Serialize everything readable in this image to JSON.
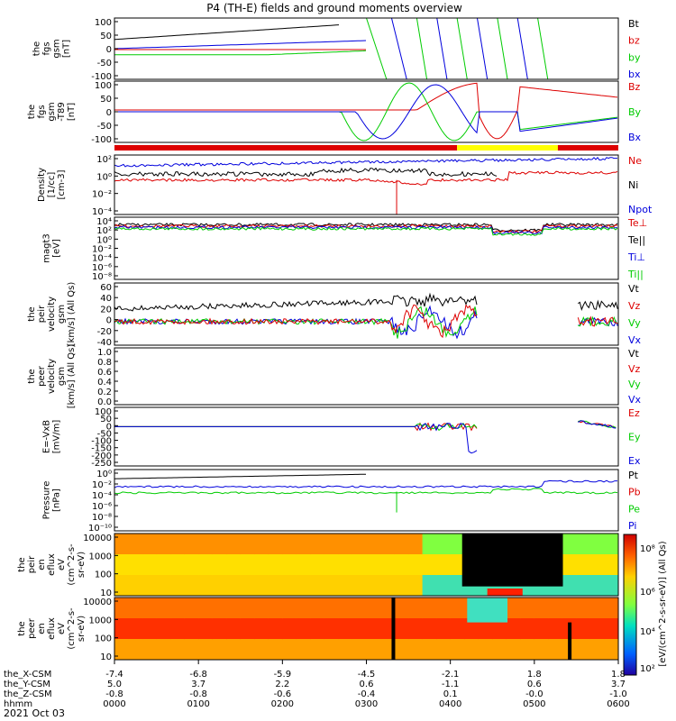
{
  "title": "P4 (TH-E) fields and ground moments overview",
  "colors": {
    "black": "#000000",
    "red": "#dd0000",
    "green": "#00cc00",
    "blue": "#0000dd",
    "yellow": "#ffff00",
    "cyan": "#00d0d0"
  },
  "chart_data": {
    "type": "line",
    "x_time_ticks": [
      "0000",
      "0100",
      "0200",
      "0300",
      "0400",
      "0500",
      "0600"
    ],
    "ephemeris": [
      {
        "label": "the_X-CSM",
        "values": [
          "-7.4",
          "-6.8",
          "-5.9",
          "-4.5",
          "-2.1",
          "1.8",
          "1.8"
        ]
      },
      {
        "label": "the_Y-CSM",
        "values": [
          "5.0",
          "3.7",
          "2.2",
          "0.6",
          "-1.1",
          "0.6",
          "3.7"
        ]
      },
      {
        "label": "the_Z-CSM",
        "values": [
          "-0.8",
          "-0.8",
          "-0.6",
          "-0.4",
          "0.1",
          "-0.0",
          "-1.0"
        ]
      },
      {
        "label": "hhmm",
        "values": []
      }
    ],
    "date_label": "2021 Oct 03",
    "panels": [
      {
        "id": "fgs-gsm",
        "ylabel": [
          "the",
          "fgs",
          "gsm",
          "[nT]"
        ],
        "yticks": [
          "100",
          "50",
          "0",
          "-50",
          "-100"
        ],
        "legend": [
          {
            "text": "Bt",
            "color": "black"
          },
          {
            "text": "bz",
            "color": "red"
          },
          {
            "text": "by",
            "color": "green"
          },
          {
            "text": "bx",
            "color": "blue"
          }
        ]
      },
      {
        "id": "fgs-gsm-dt",
        "ylabel": [
          "the",
          "fgs",
          "gsm",
          "-T89",
          "[nT]"
        ],
        "yticks": [
          "100",
          "50",
          "0",
          "-50",
          "-100"
        ],
        "legend": [
          {
            "text": "Bz",
            "color": "red"
          },
          {
            "text": "By",
            "color": "green"
          },
          {
            "text": "Bx",
            "color": "blue"
          }
        ]
      },
      {
        "id": "density",
        "ylabel": [
          "Density",
          "[1/cc]",
          "[cm-3]"
        ],
        "yticks": [
          "10²",
          "10⁰",
          "10⁻²",
          "10⁻⁴"
        ],
        "legend": [
          {
            "text": "Ne",
            "color": "red"
          },
          {
            "text": "Ni",
            "color": "black"
          },
          {
            "text": "Npot",
            "color": "blue"
          }
        ]
      },
      {
        "id": "temperature",
        "ylabel": [
          "magt3",
          "[eV]"
        ],
        "yticks": [
          "10⁴",
          "10²",
          "10⁰",
          "10⁻²",
          "10⁻⁴",
          "10⁻⁶",
          "10⁻⁸"
        ],
        "legend": [
          {
            "text": "Te⊥",
            "color": "red"
          },
          {
            "text": "Te||",
            "color": "black"
          },
          {
            "text": "Ti⊥",
            "color": "blue"
          },
          {
            "text": "Ti||",
            "color": "green"
          }
        ]
      },
      {
        "id": "peir-velocity",
        "ylabel": [
          "the",
          "peir",
          "velocity",
          "gsm",
          "[km/s] (All Qs)"
        ],
        "yticks": [
          "60",
          "40",
          "20",
          "0",
          "-20",
          "-40"
        ],
        "legend": [
          {
            "text": "Vt",
            "color": "black"
          },
          {
            "text": "Vz",
            "color": "red"
          },
          {
            "text": "Vy",
            "color": "green"
          },
          {
            "text": "Vx",
            "color": "blue"
          }
        ]
      },
      {
        "id": "peer-velocity",
        "ylabel": [
          "the",
          "peer",
          "velocity",
          "gsm",
          "[km/s] (All Qs)"
        ],
        "yticks": [
          "1.0",
          "0.8",
          "0.6",
          "0.4",
          "0.2",
          "0.0"
        ],
        "legend": [
          {
            "text": "Vt",
            "color": "black"
          },
          {
            "text": "Vz",
            "color": "red"
          },
          {
            "text": "Vy",
            "color": "green"
          },
          {
            "text": "Vx",
            "color": "blue"
          }
        ]
      },
      {
        "id": "efield",
        "ylabel": [
          "E=-VxB",
          "[mV/m]"
        ],
        "yticks": [
          "100",
          "50",
          "0",
          "-50",
          "-100",
          "-150",
          "-200",
          "-250"
        ],
        "legend": [
          {
            "text": "Ez",
            "color": "red"
          },
          {
            "text": "Ey",
            "color": "green"
          },
          {
            "text": "Ex",
            "color": "blue"
          }
        ]
      },
      {
        "id": "pressure",
        "ylabel": [
          "Pressure",
          "[nPa]"
        ],
        "yticks": [
          "10⁰",
          "10⁻²",
          "10⁻⁴",
          "10⁻⁶",
          "10⁻⁸",
          "10⁻¹⁰"
        ],
        "legend": [
          {
            "text": "Pt",
            "color": "black"
          },
          {
            "text": "Pb",
            "color": "red"
          },
          {
            "text": "Pe",
            "color": "green"
          },
          {
            "text": "Pi",
            "color": "blue"
          }
        ]
      },
      {
        "id": "peir-eflux",
        "ylabel": [
          "the",
          "peir",
          "en",
          "eflux",
          "eV",
          "(cm^2-s-",
          "sr-eV)"
        ],
        "yticks": [
          "10000",
          "1000",
          "100",
          "10"
        ]
      },
      {
        "id": "peer-eflux",
        "ylabel": [
          "the",
          "peer",
          "en",
          "eflux",
          "eV",
          "(cm^2-s-",
          "sr-eV)"
        ],
        "yticks": [
          "10000",
          "1000",
          "100",
          "10"
        ]
      }
    ],
    "colorbar_ticks": [
      "10⁸",
      "10⁶",
      "10⁴",
      "10²"
    ],
    "colorbar_label": "[eV/(cm^2-s-sr-eV)] (All Qs)"
  }
}
